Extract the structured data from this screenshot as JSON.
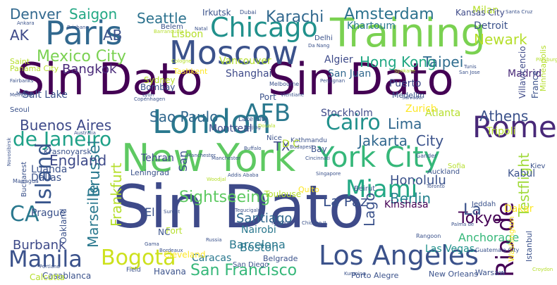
{
  "palette": {
    "dark_purple": "#440154",
    "indigo": "#3b528b",
    "blue": "#31688e",
    "teal": "#21918c",
    "green": "#35b779",
    "light_green": "#5ec962",
    "yellow_green": "#b5de2b",
    "yellow": "#fde725"
  },
  "words": [
    {
      "text": "Sin Dato",
      "color": "#440154"
    },
    {
      "text": "Sin Dato",
      "color": "#440154"
    },
    {
      "text": "Sin Dato",
      "color": "#3e4a89"
    },
    {
      "text": "New York",
      "color": "#5ec962"
    },
    {
      "text": "Training",
      "color": "#7ad151"
    },
    {
      "text": "Moscow",
      "color": "#3b528b"
    },
    {
      "text": "London",
      "color": "#2a788e"
    },
    {
      "text": "Paris",
      "color": "#31688e"
    },
    {
      "text": "Los Angeles",
      "color": "#3b528b"
    },
    {
      "text": "York City",
      "color": "#35b779"
    },
    {
      "text": "Chicago",
      "color": "#21918c"
    },
    {
      "text": "Rome",
      "color": "#482878"
    },
    {
      "text": "Bogota",
      "color": "#cde11d"
    },
    {
      "text": "Miami",
      "color": "#22a884"
    },
    {
      "text": "AFB",
      "color": "#2a788e"
    },
    {
      "text": "Cairo",
      "color": "#21918c"
    },
    {
      "text": "Rio de",
      "color": "#440154"
    },
    {
      "text": "de Janeiro",
      "color": "#1fa188"
    },
    {
      "text": "Manila",
      "color": "#3b528b"
    },
    {
      "text": "CA",
      "color": "#2a788e"
    },
    {
      "text": "Island",
      "color": "#39568c"
    },
    {
      "text": "Mexico City",
      "color": "#7ad151"
    },
    {
      "text": "Amsterdam",
      "color": "#2c728e"
    },
    {
      "text": "Karachi",
      "color": "#31688e"
    },
    {
      "text": "Hong Kong",
      "color": "#22a884"
    },
    {
      "text": "Taipei",
      "color": "#2f6c8e"
    },
    {
      "text": "Jakarta",
      "color": "#31688e"
    },
    {
      "text": "San Francisco",
      "color": "#35b779"
    },
    {
      "text": "Sightseeing",
      "color": "#5ec962"
    },
    {
      "text": "Buenos Aires",
      "color": "#3e4a89"
    },
    {
      "text": "Sao Paulo",
      "color": "#31688e"
    },
    {
      "text": "Brussel",
      "color": "#2a788e"
    },
    {
      "text": "Berlin",
      "color": "#26828e"
    },
    {
      "text": "Honolulu",
      "color": "#3b528b"
    },
    {
      "text": "Tokyo",
      "color": "#440154"
    },
    {
      "text": "Seattle",
      "color": "#2c728e"
    },
    {
      "text": "Saigon",
      "color": "#22a884"
    },
    {
      "text": "Denver",
      "color": "#31688e"
    },
    {
      "text": "Newark",
      "color": "#b5de2b"
    },
    {
      "text": "Bangkok",
      "color": "#482878"
    },
    {
      "text": "Athens",
      "color": "#3b528b"
    },
    {
      "text": "England",
      "color": "#3e4a89"
    },
    {
      "text": "Marseille",
      "color": "#2a788e"
    },
    {
      "text": "Frankfurt",
      "color": "#b5de2b"
    },
    {
      "text": "Testflight",
      "color": "#a0da39"
    },
    {
      "text": "Lago",
      "color": "#3b528b"
    },
    {
      "text": "La Paz",
      "color": "#3b528b"
    },
    {
      "text": "Lima",
      "color": "#31688e"
    },
    {
      "text": "City",
      "color": "#3b528b"
    },
    {
      "text": "Kinshasa",
      "color": "#440154"
    },
    {
      "text": "Santiago",
      "color": "#31688e"
    },
    {
      "text": "Barcelona",
      "color": "#2a788e"
    },
    {
      "text": "Anchorage",
      "color": "#35b779"
    },
    {
      "text": "Boston",
      "color": "#2a788e"
    },
    {
      "text": "Burbank",
      "color": "#3e4a89"
    },
    {
      "text": "Caracas",
      "color": "#2a788e"
    },
    {
      "text": "Las Vegas",
      "color": "#21918c"
    },
    {
      "text": "Detroit",
      "color": "#3b528b"
    },
    {
      "text": "Milan",
      "color": "#b5de2b"
    },
    {
      "text": "Khartoum",
      "color": "#2a788e"
    },
    {
      "text": "Algier",
      "color": "#3e4a89"
    },
    {
      "text": "San Juan",
      "color": "#31688e"
    },
    {
      "text": "Madrid",
      "color": "#482878"
    },
    {
      "text": "Shanghai",
      "color": "#3e4a89"
    },
    {
      "text": "Vancouver",
      "color": "#b5de2b"
    },
    {
      "text": "Lisbon",
      "color": "#b5de2b"
    },
    {
      "text": "Stockholm",
      "color": "#3e4a89"
    },
    {
      "text": "Atlanta",
      "color": "#b5de2b"
    },
    {
      "text": "Zurich",
      "color": "#fde725"
    },
    {
      "text": "Montreal",
      "color": "#3e4a89"
    },
    {
      "text": "Tehran",
      "color": "#3e4a89"
    },
    {
      "text": "Luanda",
      "color": "#3b528b"
    },
    {
      "text": "Dallas",
      "color": "#3b528b"
    },
    {
      "text": "Prague",
      "color": "#3b528b"
    },
    {
      "text": "Nairobi",
      "color": "#2a788e"
    },
    {
      "text": "Tripoli",
      "color": "#b5de2b"
    },
    {
      "text": "Kabul",
      "color": "#3b528b"
    },
    {
      "text": "Dakar",
      "color": "#fde725"
    },
    {
      "text": "Havana",
      "color": "#3b528b"
    },
    {
      "text": "Casablanca",
      "color": "#3b528b"
    },
    {
      "text": "Kansas City",
      "color": "#3e4a89"
    },
    {
      "text": "Irkutsk",
      "color": "#3b528b"
    },
    {
      "text": "Salt Lake",
      "color": "#3b528b"
    },
    {
      "text": "Bombay",
      "color": "#3b528b"
    },
    {
      "text": "Sydney",
      "color": "#b5de2b"
    },
    {
      "text": "Port",
      "color": "#3b528b"
    },
    {
      "text": "Puerto",
      "color": "#3e4a89"
    },
    {
      "text": "Medellin",
      "color": "#3b528b"
    },
    {
      "text": "Warsaw",
      "color": "#3b528b"
    },
    {
      "text": "Istanbul",
      "color": "#3b528b"
    },
    {
      "text": "Washington",
      "color": "#fde725"
    },
    {
      "text": "Villavicencio",
      "color": "#3e4a89"
    },
    {
      "text": "France",
      "color": "#3b528b"
    },
    {
      "text": "Minneapolis",
      "color": "#b5de2b"
    },
    {
      "text": "Krasnoyarsk",
      "color": "#3b528b"
    },
    {
      "text": "Leningrad",
      "color": "#3b528b"
    },
    {
      "text": "Belgrade",
      "color": "#3b528b"
    },
    {
      "text": "Porto Alegre",
      "color": "#3b528b"
    },
    {
      "text": "New Orleans",
      "color": "#3b528b"
    },
    {
      "text": "Kiev",
      "color": "#3b528b"
    },
    {
      "text": "Jeddah",
      "color": "#3b528b"
    },
    {
      "text": "Belem",
      "color": "#3b528b"
    },
    {
      "text": "Delhi",
      "color": "#3b528b"
    },
    {
      "text": "Beirut",
      "color": "#3b528b"
    },
    {
      "text": "Sofia",
      "color": "#b5de2b"
    },
    {
      "text": "Auckland",
      "color": "#3b528b"
    },
    {
      "text": "Toulouse",
      "color": "#b5de2b"
    },
    {
      "text": "Cleveland",
      "color": "#fde725"
    },
    {
      "text": "San Diego",
      "color": "#3b528b"
    },
    {
      "text": "Manchester",
      "color": "#3b528b"
    },
    {
      "text": "Melbourne",
      "color": "#3b528b"
    },
    {
      "text": "Gander",
      "color": "#3b528b"
    },
    {
      "text": "Lake City",
      "color": "#3b528b"
    },
    {
      "text": "Kathmandu",
      "color": "#3b528b"
    },
    {
      "text": "Quito",
      "color": "#fde725"
    },
    {
      "text": "Tashkent",
      "color": "#fde725"
    },
    {
      "text": "Manchester",
      "color": "#3b528b"
    },
    {
      "text": "AB",
      "color": "#3b528b"
    },
    {
      "text": "AK",
      "color": "#3e4a89"
    },
    {
      "text": "TX",
      "color": "#3e4a89"
    },
    {
      "text": "San",
      "color": "#3b528b"
    },
    {
      "text": "La",
      "color": "#3b528b"
    },
    {
      "text": "El",
      "color": "#3b528b"
    },
    {
      "text": "D C",
      "color": "#b5de2b"
    },
    {
      "text": "Nice",
      "color": "#3b528b"
    },
    {
      "text": "Bay",
      "color": "#3b528b"
    },
    {
      "text": "Fort",
      "color": "#b5de2b"
    },
    {
      "text": "Dubai",
      "color": "#3b528b"
    },
    {
      "text": "Brisbane",
      "color": "#3b528b"
    },
    {
      "text": "Ankara",
      "color": "#3b528b"
    },
    {
      "text": "Natal",
      "color": "#3b528b"
    },
    {
      "text": "Da Nang",
      "color": "#3b528b"
    },
    {
      "text": "Panama City",
      "color": "#b5de2b"
    },
    {
      "text": "Saint",
      "color": "#b5de2b"
    },
    {
      "text": "Copenhagen",
      "color": "#3b528b"
    },
    {
      "text": "Lyon",
      "color": "#3b528b"
    },
    {
      "text": "Seoul",
      "color": "#3b528b"
    },
    {
      "text": "Beijing",
      "color": "#3b528b"
    },
    {
      "text": "Manila",
      "color": "#3b528b"
    },
    {
      "text": "Novosibirsk",
      "color": "#3b528b"
    },
    {
      "text": "Addis Ababa",
      "color": "#3b528b"
    },
    {
      "text": "Singapore",
      "color": "#3b528b"
    },
    {
      "text": "Tegucigalpa",
      "color": "#3b528b"
    },
    {
      "text": "Surgut",
      "color": "#3b528b"
    },
    {
      "text": "Rangoon",
      "color": "#3b528b"
    },
    {
      "text": "Bordeaux",
      "color": "#3b528b"
    },
    {
      "text": "Kunming",
      "color": "#3b528b"
    },
    {
      "text": "Portland",
      "color": "#3b528b"
    },
    {
      "text": "Calcutta",
      "color": "#b5de2b"
    },
    {
      "text": "Field",
      "color": "#3b528b"
    },
    {
      "text": "Gama",
      "color": "#3b528b"
    },
    {
      "text": "Croydon",
      "color": "#b5de2b"
    },
    {
      "text": "Guatemala City",
      "color": "#3b528b"
    },
    {
      "text": "Palma de",
      "color": "#3b528b"
    },
    {
      "text": "Toronto",
      "color": "#3b528b"
    },
    {
      "text": "Cincinnati",
      "color": "#3b528b"
    },
    {
      "text": "Pittsburgh",
      "color": "#b5de2b"
    },
    {
      "text": "Spokane",
      "color": "#b5de2b"
    },
    {
      "text": "San Jose",
      "color": "#3b528b"
    },
    {
      "text": "Tunis",
      "color": "#3b528b"
    },
    {
      "text": "Buffalo",
      "color": "#3b528b"
    },
    {
      "text": "Douala",
      "color": "#b5de2b"
    },
    {
      "text": "Perpignan",
      "color": "#3b528b"
    },
    {
      "text": "Vientiane",
      "color": "#3b528b"
    },
    {
      "text": "Salvador",
      "color": "#3b528b"
    },
    {
      "text": "Santa Cruz",
      "color": "#3b528b"
    },
    {
      "text": "Memphis",
      "color": "#3b528b"
    },
    {
      "text": "Fairbanks",
      "color": "#3b528b"
    },
    {
      "text": "Cologne",
      "color": "#b5de2b"
    },
    {
      "text": "Budapest",
      "color": "#3b528b"
    },
    {
      "text": "Woodjal",
      "color": "#b5de2b"
    },
    {
      "text": "Oakland",
      "color": "#3b528b"
    },
    {
      "text": "Managua",
      "color": "#3b528b"
    },
    {
      "text": "Bucharest",
      "color": "#3b528b"
    },
    {
      "text": "Australia",
      "color": "#3b528b"
    },
    {
      "text": "Chicago IL",
      "color": "#3b528b"
    },
    {
      "text": "York NY",
      "color": "#3b528b"
    },
    {
      "text": "Russia",
      "color": "#3b528b"
    },
    {
      "text": "Barranquilla",
      "color": "#b5de2b"
    },
    {
      "text": "NC",
      "color": "#3b528b"
    }
  ]
}
